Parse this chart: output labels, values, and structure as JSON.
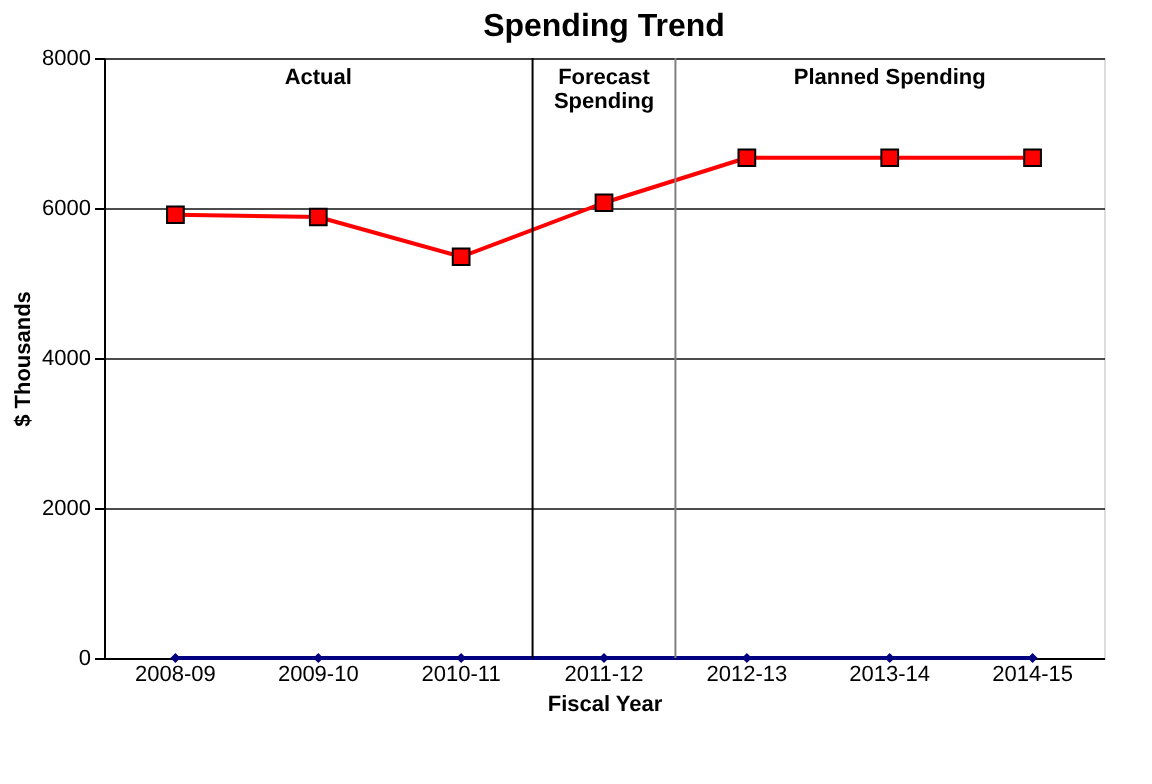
{
  "chart_data": {
    "type": "line",
    "title": "Spending Trend",
    "xlabel": "Fiscal Year",
    "ylabel": "$ Thousands",
    "categories": [
      "2008-09",
      "2009-10",
      "2010-11",
      "2011-12",
      "2012-13",
      "2013-14",
      "2014-15"
    ],
    "series": [
      {
        "color": "#ff0000",
        "marker": "square",
        "values": [
          5910,
          5880,
          5350,
          6070,
          6670,
          6670,
          6670
        ]
      },
      {
        "color": "#000080",
        "marker": "diamond",
        "values": [
          0,
          0,
          0,
          0,
          0,
          0,
          0
        ]
      }
    ],
    "ylim": [
      0,
      8000
    ],
    "yticks": [
      0,
      2000,
      4000,
      6000,
      8000
    ],
    "grid": "y",
    "annotations": [
      "Actual",
      "Forecast Spending",
      "Planned Spending"
    ],
    "ref_lines": [
      {
        "axis": "x",
        "value": "2011-12",
        "color": "#000000"
      },
      {
        "axis": "x",
        "value": "2012-13",
        "color": "#808080"
      }
    ]
  }
}
